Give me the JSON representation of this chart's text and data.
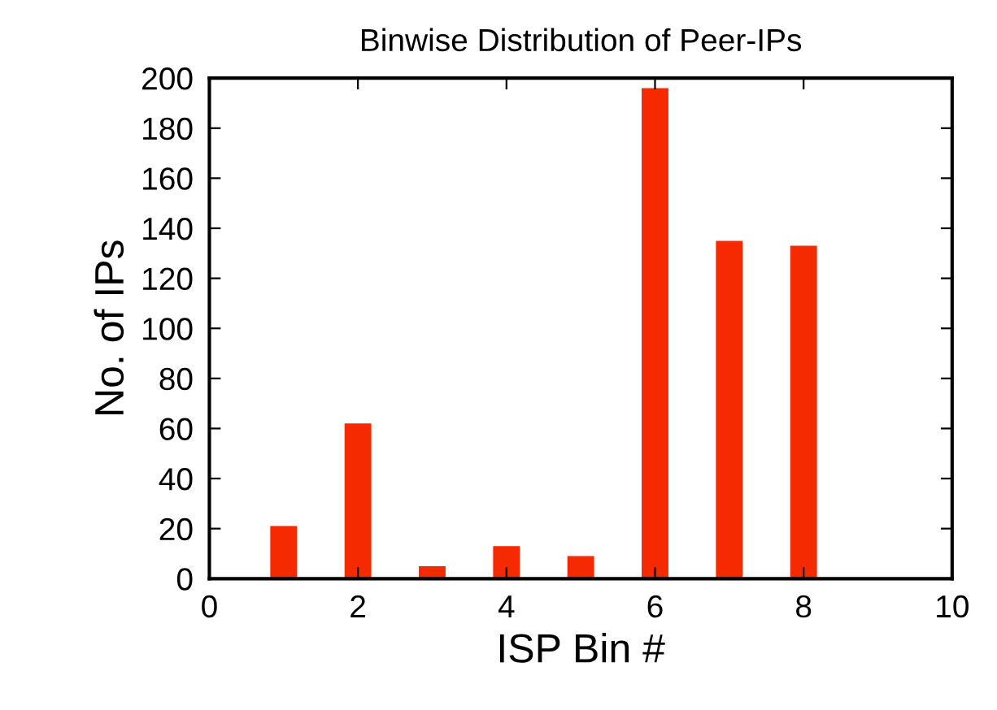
{
  "chart_data": {
    "type": "bar",
    "title": "Binwise Distribution of Peer-IPs",
    "xlabel": "ISP Bin #",
    "ylabel": "No. of IPs",
    "x": [
      1,
      2,
      3,
      4,
      5,
      6,
      7,
      8
    ],
    "values": [
      21,
      62,
      5,
      13,
      9,
      196,
      135,
      133
    ],
    "color": "#f52a00",
    "xlim": [
      0,
      10
    ],
    "xticks": [
      0,
      2,
      4,
      6,
      8,
      10
    ],
    "ylim": [
      0,
      200
    ],
    "yticks": [
      0,
      20,
      40,
      60,
      80,
      100,
      120,
      140,
      160,
      180,
      200
    ],
    "grid": false,
    "legend": false
  }
}
